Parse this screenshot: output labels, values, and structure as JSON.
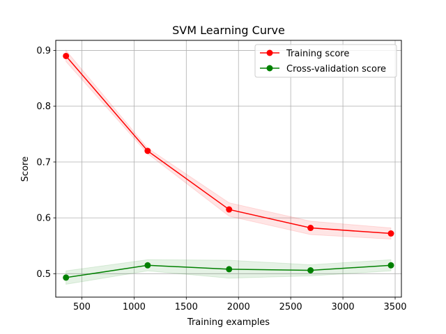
{
  "chart_data": {
    "type": "line",
    "title": "SVM Learning Curve",
    "xlabel": "Training examples",
    "ylabel": "Score",
    "xlim": [
      250,
      3560
    ],
    "ylim": [
      0.458,
      0.918
    ],
    "xticks": [
      500,
      1000,
      1500,
      2000,
      2500,
      3000,
      3500
    ],
    "yticks": [
      0.5,
      0.6,
      0.7,
      0.8,
      0.9
    ],
    "grid": true,
    "legend_position": "top-right",
    "x": [
      348,
      1130,
      1910,
      2690,
      3460
    ],
    "series": [
      {
        "name": "Training score",
        "color": "#ff0000",
        "fill_color": "#ff0000",
        "values": [
          0.89,
          0.72,
          0.615,
          0.582,
          0.572
        ],
        "band_low": [
          0.88,
          0.715,
          0.603,
          0.57,
          0.562
        ],
        "band_high": [
          0.9,
          0.725,
          0.627,
          0.594,
          0.582
        ]
      },
      {
        "name": "Cross-validation score",
        "color": "#008000",
        "fill_color": "#008000",
        "values": [
          0.493,
          0.515,
          0.508,
          0.506,
          0.515
        ],
        "band_low": [
          0.481,
          0.505,
          0.492,
          0.496,
          0.505
        ],
        "band_high": [
          0.505,
          0.525,
          0.524,
          0.516,
          0.525
        ]
      }
    ]
  }
}
